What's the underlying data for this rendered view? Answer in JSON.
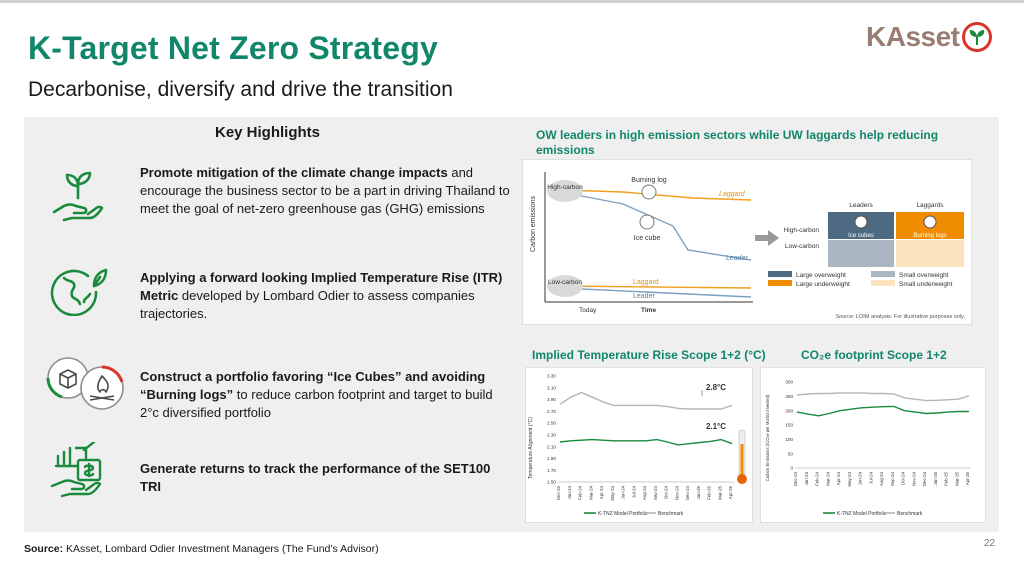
{
  "header": {
    "title": "K-Target Net Zero Strategy",
    "subtitle": "Decarbonise, diversify and drive the transition",
    "logo_text": "KAsset"
  },
  "highlights": {
    "title": "Key Highlights",
    "items": [
      {
        "icon": "hand-plant-icon",
        "bold": "Promote mitigation of the climate change impacts",
        "rest": " and encourage the business sector to be a part in driving Thailand to meet the goal of net-zero greenhouse gas (GHG) emissions"
      },
      {
        "icon": "globe-leaf-icon",
        "bold": "Applying a forward looking Implied Temperature Rise (ITR) Metric",
        "rest": " developed by Lombard Odier to assess companies trajectories."
      },
      {
        "icon": "ice-cube-burning-log-icon",
        "bold_parts": [
          "Construct a portfolio favoring “Ice Cubes” and avoiding “Burning logs”"
        ],
        "rest": " to reduce carbon footprint and target to build 2°c diversified portfolio"
      },
      {
        "icon": "growth-chart-hand-icon",
        "bold": "Generate returns to track the performance of the SET100 TRI",
        "rest": ""
      }
    ]
  },
  "ow_section": {
    "title": "OW leaders in high emission sectors while UW laggards help reducing emissions",
    "diagram": {
      "y_label": "Carbon emissions",
      "high_carbon": "High-carbon",
      "low_carbon": "Low-carbon",
      "burning_log": "Burning log",
      "ice_cube": "Ice cube",
      "laggard": "Laggard",
      "leader": "Leader",
      "today": "Today",
      "time": "Time",
      "col_leaders": "Leaders",
      "col_laggards": "Laggards",
      "row_high": "High-carbon",
      "row_low": "Low-carbon",
      "cell_ice": "Ice cubes",
      "cell_burning": "Burning logs",
      "legend": [
        "Large overweight",
        "Small overweight",
        "Large underweight",
        "Small underweight"
      ],
      "legend_colors": [
        "#4d6a82",
        "#a9b6c2",
        "#f08c00",
        "#fbe3bf"
      ],
      "footnote": "Source: LOIM analysis. For illustrative purposes only."
    }
  },
  "itr_chart": {
    "title": "Implied Temperature Rise Scope 1+2 (°C)",
    "ylabel": "Temperature Alignment (°C)",
    "label_bench": "2.8°C",
    "label_port": "2.1°C",
    "legend": [
      "K-TNZ Model Portfolio",
      "Benchmark"
    ]
  },
  "co2_chart": {
    "title": "CO₂e footprint Scope 1+2",
    "ylabel": "Carbon Emissions (tCO₂e per MUSD invested)",
    "legend": [
      "K-TNZ Model Portfolio",
      "Benchmark"
    ]
  },
  "chart_data": [
    {
      "type": "line",
      "title": "Implied Temperature Rise Scope 1+2 (°C)",
      "ylabel": "Temperature Alignment (°C)",
      "ylim": [
        1.5,
        3.3
      ],
      "yticks": [
        "3.30",
        "3.10",
        "2.90",
        "2.70",
        "2.50",
        "2.30",
        "2.10",
        "1.90",
        "1.70",
        "1.50"
      ],
      "categories": [
        "Dec-23",
        "Jan-24",
        "Feb-24",
        "Mar-24",
        "Apr-24",
        "May-24",
        "Jun-24",
        "Jul-24",
        "Aug-24",
        "Sep-24",
        "Oct-24",
        "Nov-24",
        "Dec-24",
        "Jan-25",
        "Feb-25",
        "Mar-25",
        "Apr-25"
      ],
      "series": [
        {
          "name": "K-TNZ Model Portfolio",
          "color": "#1a8a3c",
          "values": [
            2.18,
            2.2,
            2.21,
            2.22,
            2.21,
            2.2,
            2.2,
            2.2,
            2.2,
            2.22,
            2.18,
            2.13,
            2.15,
            2.17,
            2.19,
            2.22,
            2.15
          ]
        },
        {
          "name": "Benchmark",
          "color": "#b5b5b5",
          "values": [
            2.82,
            2.94,
            3.02,
            2.94,
            2.86,
            2.8,
            2.8,
            2.8,
            2.8,
            2.8,
            2.78,
            2.75,
            2.74,
            2.74,
            2.74,
            2.74,
            2.8
          ]
        }
      ],
      "legend": "bottom",
      "grid": false
    },
    {
      "type": "line",
      "title": "CO₂e footprint Scope 1+2",
      "ylabel": "Carbon Emissions (tCO₂e per MUSD invested)",
      "ylim": [
        0,
        300
      ],
      "yticks": [
        "300",
        "250",
        "200",
        "150",
        "100",
        "50",
        "0"
      ],
      "categories": [
        "Dec-23",
        "Jan-24",
        "Feb-24",
        "Mar-24",
        "Apr-24",
        "May-24",
        "Jun-24",
        "Jul-24",
        "Aug-24",
        "Sep-24",
        "Oct-24",
        "Nov-24",
        "Dec-24",
        "Jan-25",
        "Feb-25",
        "Mar-25",
        "Apr-25"
      ],
      "series": [
        {
          "name": "K-TNZ Model Portfolio",
          "color": "#1a8a3c",
          "values": [
            195,
            188,
            182,
            190,
            200,
            205,
            210,
            212,
            214,
            215,
            200,
            195,
            190,
            192,
            195,
            197,
            197
          ]
        },
        {
          "name": "Benchmark",
          "color": "#b5b5b5",
          "values": [
            255,
            258,
            260,
            260,
            262,
            262,
            262,
            260,
            260,
            258,
            245,
            240,
            235,
            236,
            238,
            240,
            252
          ]
        }
      ],
      "legend": "bottom",
      "grid": false
    }
  ],
  "footer": {
    "source_label": "Source:",
    "source_text": " KAsset, Lombard Odier Investment Managers (The Fund’s Advisor)",
    "page": "22"
  }
}
